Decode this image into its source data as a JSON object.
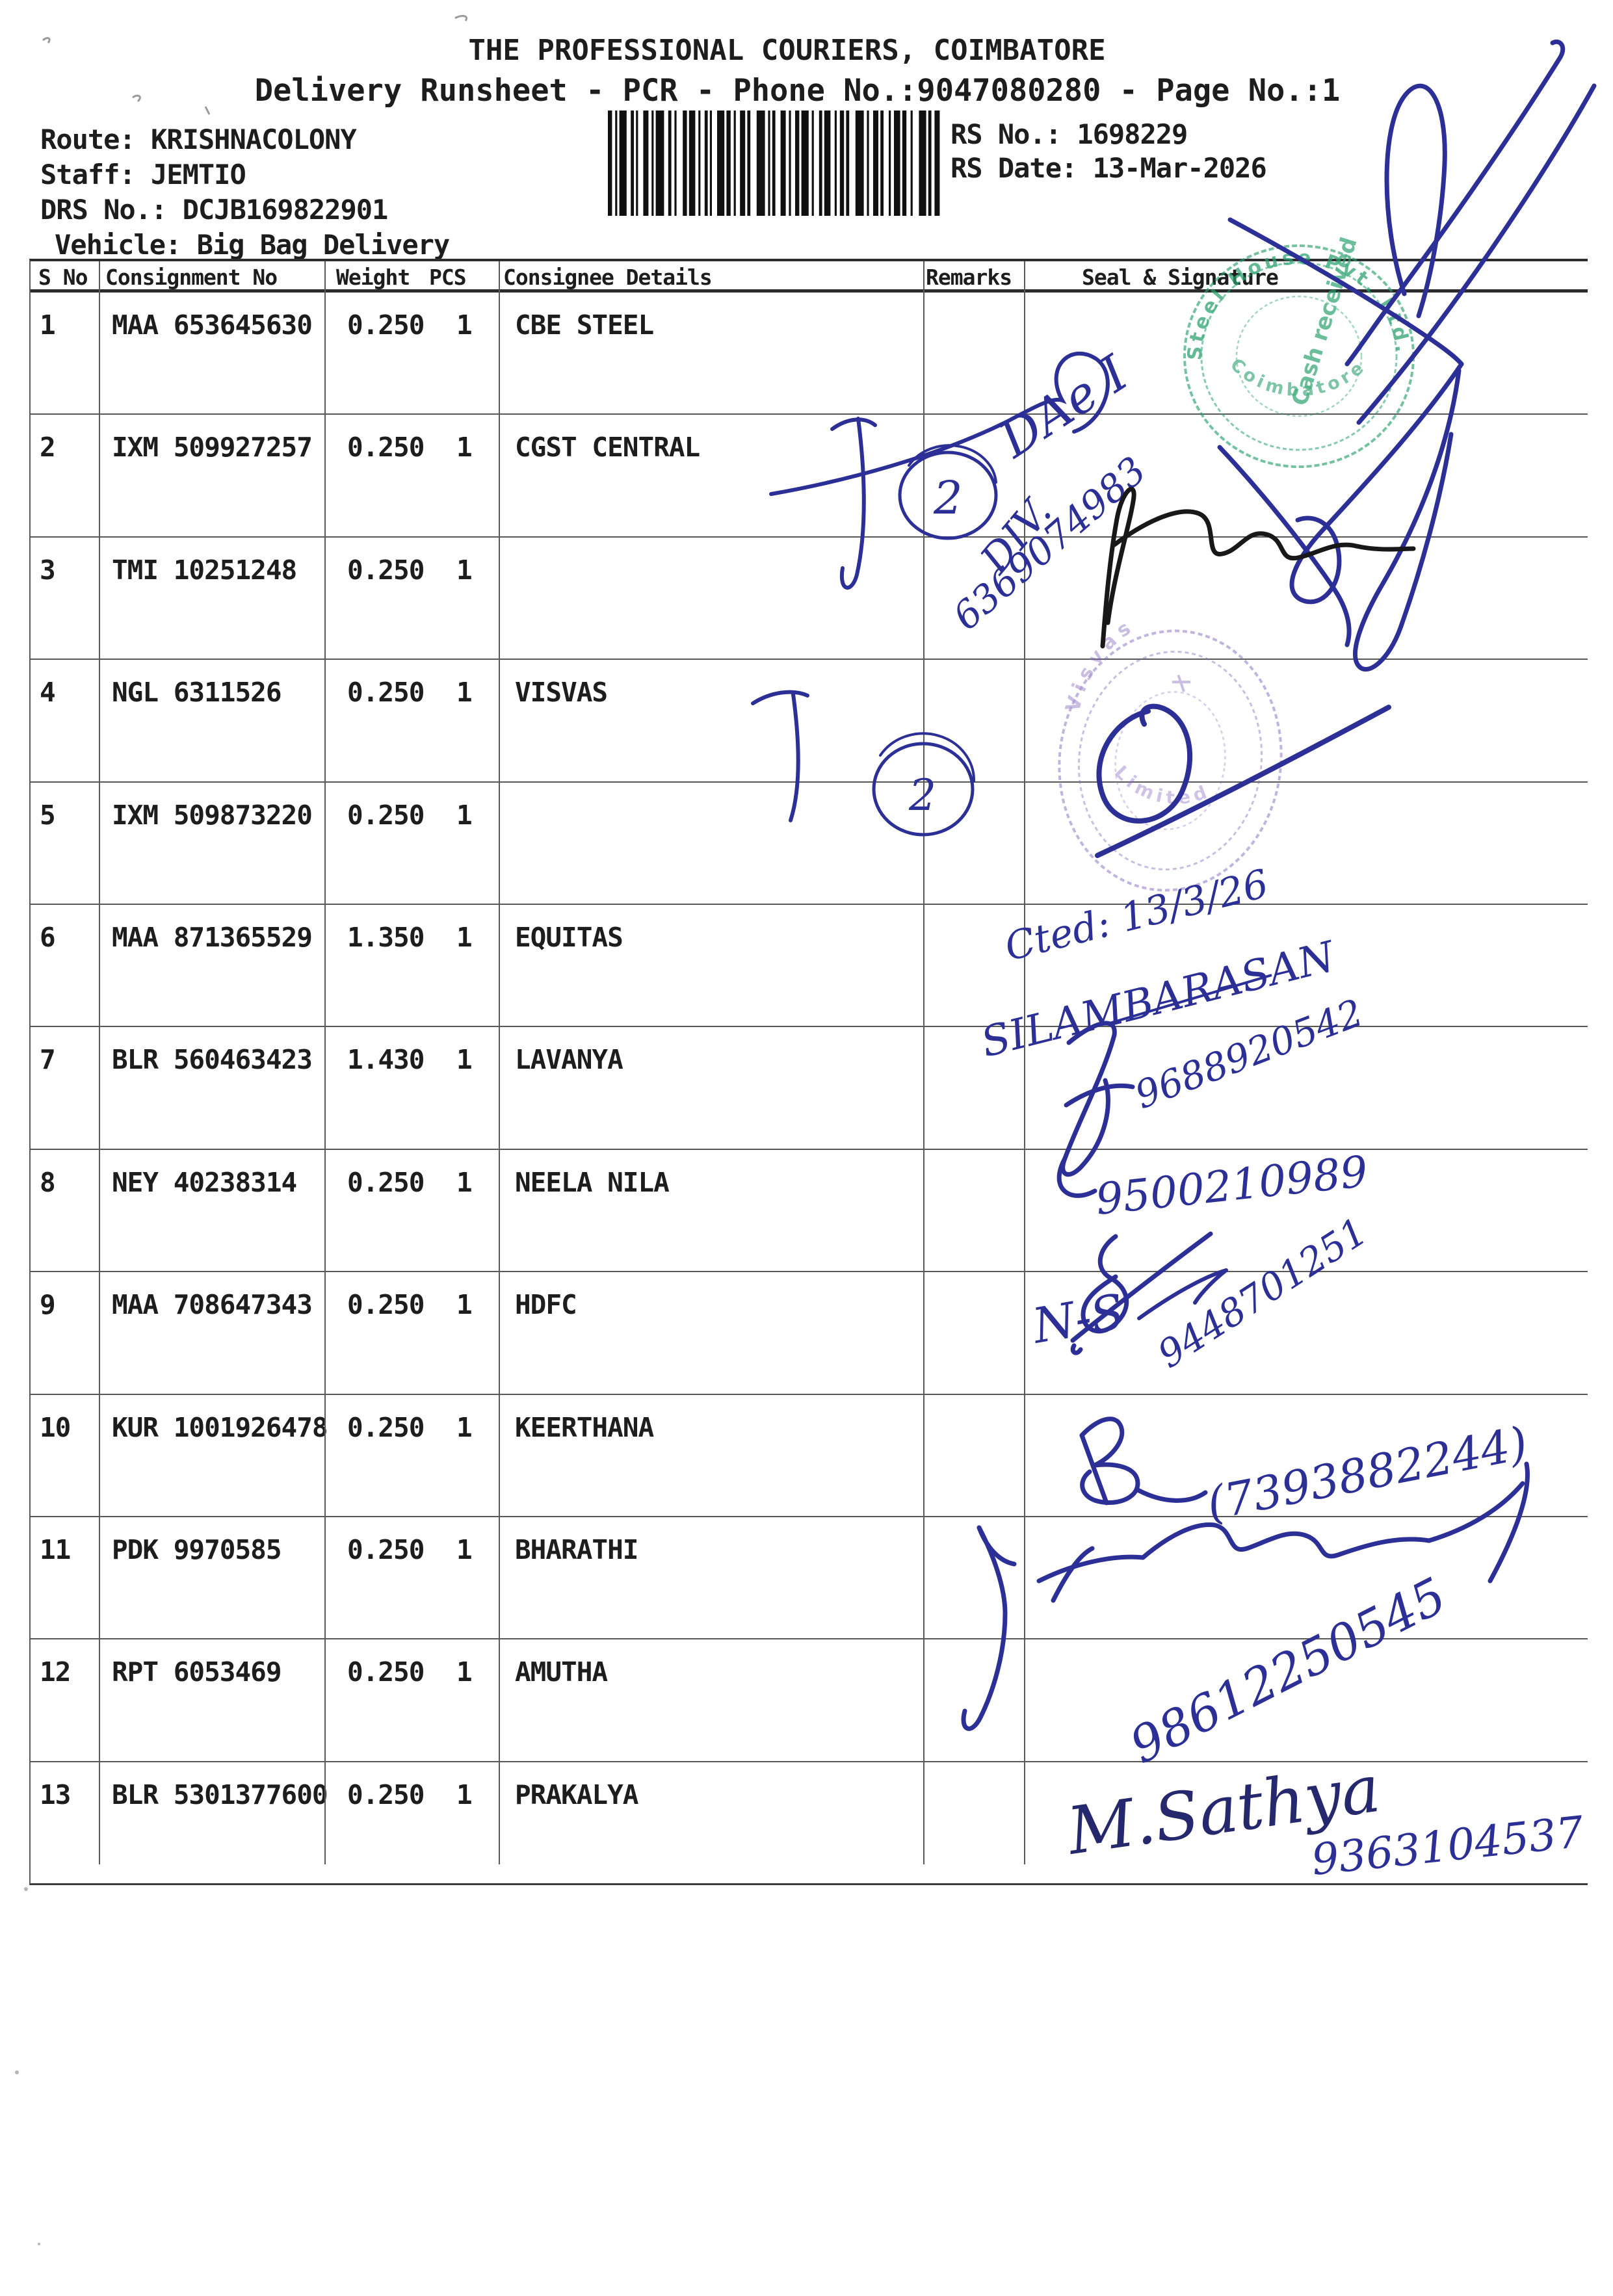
{
  "header": {
    "title": "THE PROFESSIONAL COURIERS, COIMBATORE",
    "subtitle": "Delivery Runsheet - PCR - Phone No.:9047080280 - Page No.:1",
    "route_label": "Route:",
    "route_value": "KRISHNACOLONY",
    "staff_label": "Staff:",
    "staff_value": "JEMTIO",
    "drs_label": "DRS No.:",
    "drs_value": "DCJB169822901",
    "vehicle_label": "Vehicle:",
    "vehicle_value": "Big Bag Delivery",
    "rs_no_label": "RS No.:",
    "rs_no_value": "1698229",
    "rs_date_label": "RS Date:",
    "rs_date_value": "13-Mar-2026"
  },
  "table": {
    "columns": {
      "s_no": "S No",
      "consignment_no": "Consignment No",
      "weight": "Weight",
      "pcs": "PCS",
      "consignee": "Consignee Details",
      "remarks": "Remarks",
      "seal": "Seal & Signature"
    },
    "rows": [
      {
        "s_no": "1",
        "consignment_no": "MAA 653645630",
        "weight": "0.250",
        "pcs": "1",
        "consignee": "CBE STEEL",
        "remarks": ""
      },
      {
        "s_no": "2",
        "consignment_no": "IXM 509927257",
        "weight": "0.250",
        "pcs": "1",
        "consignee": "CGST CENTRAL",
        "remarks": ""
      },
      {
        "s_no": "3",
        "consignment_no": "TMI 10251248",
        "weight": "0.250",
        "pcs": "1",
        "consignee": "",
        "remarks": ""
      },
      {
        "s_no": "4",
        "consignment_no": "NGL 6311526",
        "weight": "0.250",
        "pcs": "1",
        "consignee": "VISVAS",
        "remarks": ""
      },
      {
        "s_no": "5",
        "consignment_no": "IXM 509873220",
        "weight": "0.250",
        "pcs": "1",
        "consignee": "",
        "remarks": ""
      },
      {
        "s_no": "6",
        "consignment_no": "MAA 871365529",
        "weight": "1.350",
        "pcs": "1",
        "consignee": "EQUITAS",
        "remarks": ""
      },
      {
        "s_no": "7",
        "consignment_no": "BLR 560463423",
        "weight": "1.430",
        "pcs": "1",
        "consignee": "LAVANYA",
        "remarks": ""
      },
      {
        "s_no": "8",
        "consignment_no": "NEY 40238314",
        "weight": "0.250",
        "pcs": "1",
        "consignee": "NEELA NILA",
        "remarks": ""
      },
      {
        "s_no": "9",
        "consignment_no": "MAA 708647343",
        "weight": "0.250",
        "pcs": "1",
        "consignee": "HDFC",
        "remarks": ""
      },
      {
        "s_no": "10",
        "consignment_no": "KUR 1001926478",
        "weight": "0.250",
        "pcs": "1",
        "consignee": "KEERTHANA",
        "remarks": ""
      },
      {
        "s_no": "11",
        "consignment_no": "PDK 9970585",
        "weight": "0.250",
        "pcs": "1",
        "consignee": "BHARATHI",
        "remarks": ""
      },
      {
        "s_no": "12",
        "consignment_no": "RPT 6053469",
        "weight": "0.250",
        "pcs": "1",
        "consignee": "AMUTHA",
        "remarks": ""
      },
      {
        "s_no": "13",
        "consignment_no": "BLR 5301377600",
        "weight": "0.250",
        "pcs": "1",
        "consignee": "PRAKALYA",
        "remarks": ""
      }
    ]
  },
  "annotations": {
    "handwriting": {
      "note_dae": "DAe I",
      "note_div": "DIV.",
      "note_div_phone": "6369074983",
      "circled_count_a": "2",
      "circled_count_b": "2",
      "row6_date_note": "Cted: 13/3/26",
      "row6_name": "SILAMBARASAN",
      "row6_phone": "9688920542",
      "row7_phone": "9500210989",
      "row8_phone": "9448701251",
      "row9_initials": "N-S",
      "row10_phone": "(7393882244)",
      "row11_phone": "98612250545",
      "row13_name": "M.Sathya",
      "row13_phone": "9363104537"
    },
    "stamps": {
      "green": {
        "arc_top": "Steel House Pvt. Ltd.",
        "arc_bottom": "Coimbatore",
        "center": "Cash received",
        "color": "#27a06b"
      },
      "purple": {
        "arc_top": "Visvas",
        "arc_bottom": "Limited",
        "color": "#8166bd"
      }
    },
    "ink_colors": {
      "pen_blue": "#2c2f96",
      "pen_black": "#181818"
    }
  }
}
